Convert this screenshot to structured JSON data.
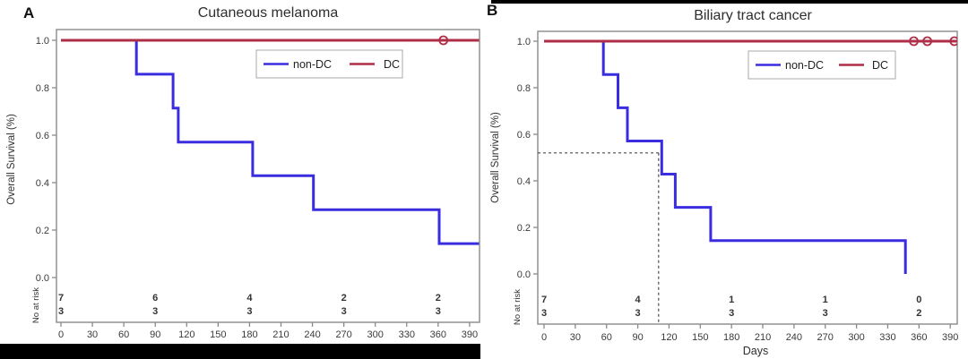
{
  "style": {
    "background": "#ffffff",
    "frame_color": "#8a8a8a",
    "text_color": "#333333",
    "median_line_color": "#4a4a4a",
    "redaction_color": "#000000",
    "non_dc_color": "#3a2de0",
    "dc_color": "#ae2e47",
    "risk_non_dc_color": "#5150e0",
    "risk_dc_color": "#bb3a5c"
  },
  "chart_data": [
    {
      "panel_label": "A",
      "type": "line",
      "subtype": "kaplan-meier-step",
      "title": "Cutaneous melanoma",
      "ylabel": "Overall Survival (%)",
      "xlabel": "",
      "xlim": [
        0,
        390
      ],
      "ylim": [
        0.0,
        1.0
      ],
      "xticks": [
        0,
        30,
        60,
        90,
        120,
        150,
        180,
        210,
        240,
        270,
        300,
        330,
        360,
        390
      ],
      "ytick_labels": [
        "1.0",
        "0.8",
        "0.6",
        "0.4",
        "0.2",
        "0.0"
      ],
      "ytick_values": [
        1.0,
        0.8,
        0.6,
        0.4,
        0.2,
        0.0
      ],
      "grid": false,
      "legend_position": "top-right",
      "series": [
        {
          "name": "non-DC",
          "color": "#3a2de0",
          "steps": [
            [
              0,
              1.0
            ],
            [
              72,
              0.857
            ],
            [
              107,
              0.714
            ],
            [
              112,
              0.571
            ],
            [
              183,
              0.429
            ],
            [
              241,
              0.286
            ],
            [
              361,
              0.143
            ]
          ],
          "end_day": 399,
          "censor_days": []
        },
        {
          "name": "DC",
          "color": "#ae2e47",
          "steps": [
            [
              0,
              1.0
            ]
          ],
          "end_day": 399,
          "censor_days": [
            365
          ]
        }
      ],
      "median_annotation": null,
      "risk_table": {
        "label": "No at risk",
        "days": [
          0,
          90,
          180,
          270,
          360
        ],
        "rows": [
          {
            "name": "non-DC",
            "color": "#5150e0",
            "counts": [
              "7",
              "6",
              "4",
              "2",
              "2"
            ]
          },
          {
            "name": "DC",
            "color": "#bb3a5c",
            "counts": [
              "3",
              "3",
              "3",
              "3",
              "3"
            ]
          }
        ]
      }
    },
    {
      "panel_label": "B",
      "type": "line",
      "subtype": "kaplan-meier-step",
      "title": "Biliary tract cancer",
      "ylabel": "Overall Survival (%)",
      "xlabel": "Days",
      "xlim": [
        0,
        390
      ],
      "ylim": [
        0.0,
        1.0
      ],
      "xticks": [
        0,
        30,
        60,
        90,
        120,
        150,
        180,
        210,
        240,
        270,
        300,
        330,
        360,
        390
      ],
      "ytick_labels": [
        "1.0",
        "0.8",
        "0.6",
        "0.4",
        "0.2",
        "0.0"
      ],
      "ytick_values": [
        1.0,
        0.8,
        0.6,
        0.4,
        0.2,
        0.0
      ],
      "grid": false,
      "legend_position": "top-right",
      "series": [
        {
          "name": "non-DC",
          "color": "#3a2de0",
          "steps": [
            [
              0,
              1.0
            ],
            [
              57,
              0.857
            ],
            [
              71,
              0.714
            ],
            [
              80,
              0.571
            ],
            [
              113,
              0.429
            ],
            [
              126,
              0.286
            ],
            [
              160,
              0.143
            ],
            [
              347,
              0.0
            ]
          ],
          "end_day": null,
          "censor_days": []
        },
        {
          "name": "DC",
          "color": "#ae2e47",
          "steps": [
            [
              0,
              1.0
            ]
          ],
          "end_day": 397,
          "censor_days": [
            355,
            368,
            394
          ]
        }
      ],
      "median_annotation": {
        "day": 110,
        "survival": 0.52
      },
      "risk_table": {
        "label": "No at risk",
        "days": [
          0,
          90,
          180,
          270,
          360
        ],
        "rows": [
          {
            "name": "non-DC",
            "color": "#5150e0",
            "counts": [
              "7",
              "4",
              "1",
              "1",
              "0"
            ]
          },
          {
            "name": "DC",
            "color": "#bb3a5c",
            "counts": [
              "3",
              "3",
              "3",
              "3",
              "2"
            ]
          }
        ]
      }
    }
  ]
}
